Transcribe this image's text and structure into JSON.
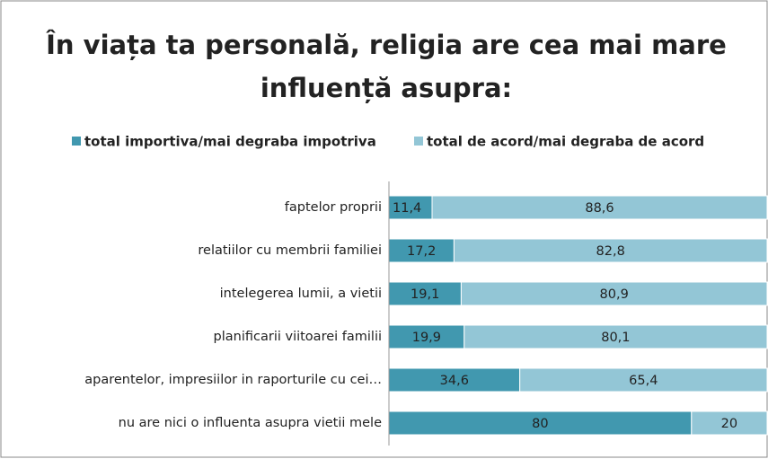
{
  "chart_data": {
    "type": "stacked-bar-horizontal",
    "title": "În viața ta personală, religia are cea mai mare",
    "subtitle": "influență asupra:",
    "categories": [
      "faptelor proprii",
      "relatiilor cu membrii familiei",
      "intelegerea lumii, a vietii",
      "planificarii viitoarei familii",
      "aparentelor, impresiilor in raporturile cu cei…",
      "nu are nici o influenta asupra vietii mele"
    ],
    "series": [
      {
        "name": "total importiva/mai degraba impotriva",
        "color": "#4198af",
        "values": [
          11.4,
          17.2,
          19.1,
          19.9,
          34.6,
          80
        ],
        "value_labels": [
          "11,4",
          "17,2",
          "19,1",
          "19,9",
          "34,6",
          "80"
        ]
      },
      {
        "name": "total de acord/mai degraba de acord",
        "color": "#93c6d6",
        "values": [
          88.6,
          82.8,
          80.9,
          80.1,
          65.4,
          20
        ],
        "value_labels": [
          "88,6",
          "82,8",
          "80,9",
          "80,1",
          "65,4",
          "20"
        ]
      }
    ],
    "xlim": [
      0,
      100
    ],
    "legend": "top"
  }
}
